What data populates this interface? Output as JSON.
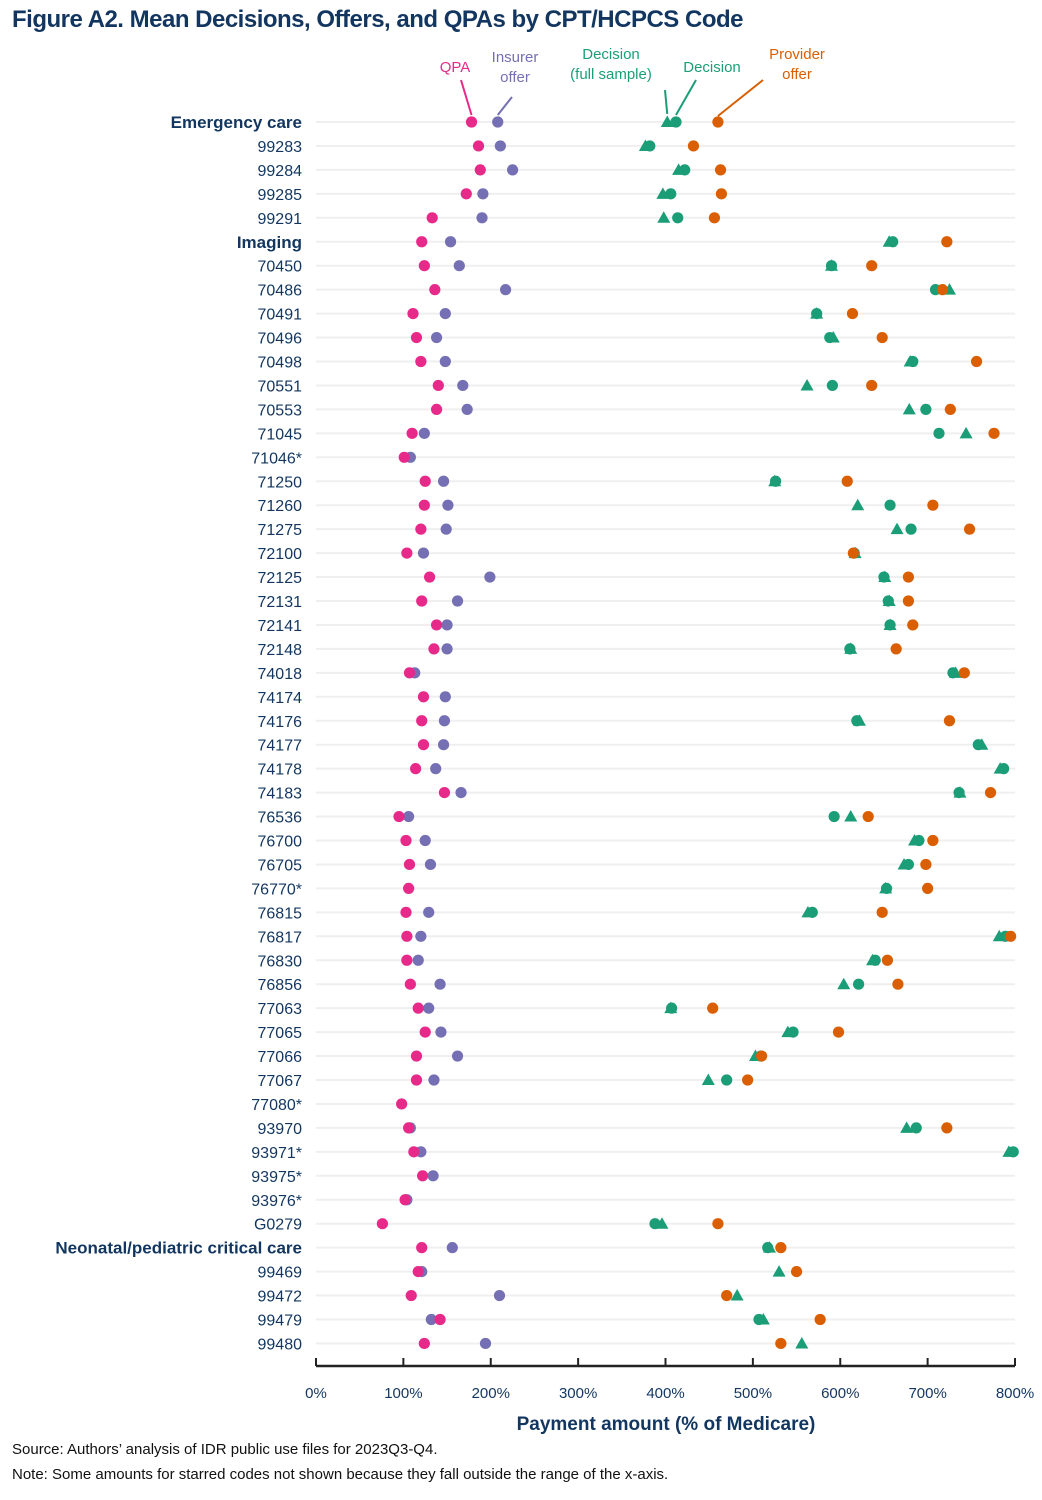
{
  "chart_data": {
    "type": "scatter",
    "title": "Figure A2. Mean Decisions, Offers, and QPAs by CPT/HCPCS Code",
    "xlabel": "Payment amount (% of Medicare)",
    "ylabel": "",
    "xlim": [
      0,
      800
    ],
    "x_ticks": [
      0,
      100,
      200,
      300,
      400,
      500,
      600,
      700,
      800
    ],
    "x_tick_labels": [
      "0%",
      "100%",
      "200%",
      "300%",
      "400%",
      "500%",
      "600%",
      "700%",
      "800%"
    ],
    "grid": "horizontal",
    "legend": [
      {
        "key": "qpa",
        "label_lines": [
          "QPA"
        ],
        "color": "#e7298a",
        "shape": "circle"
      },
      {
        "key": "insurer",
        "label_lines": [
          "Insurer",
          "offer"
        ],
        "color": "#7570b3",
        "shape": "circle"
      },
      {
        "key": "decision_full",
        "label_lines": [
          "Decision",
          "(full sample)"
        ],
        "color": "#1b9e77",
        "shape": "triangle"
      },
      {
        "key": "decision",
        "label_lines": [
          "Decision"
        ],
        "color": "#1b9e77",
        "shape": "circle"
      },
      {
        "key": "provider",
        "label_lines": [
          "Provider",
          "offer"
        ],
        "color": "#d95f02",
        "shape": "circle"
      }
    ],
    "rows": [
      {
        "label": "Emergency care",
        "group": true,
        "qpa": 178,
        "insurer": 208,
        "decision_full": 402,
        "decision": 412,
        "provider": 460
      },
      {
        "label": "99283",
        "group": false,
        "qpa": 186,
        "insurer": 211,
        "decision_full": 377,
        "decision": 382,
        "provider": 432
      },
      {
        "label": "99284",
        "group": false,
        "qpa": 188,
        "insurer": 225,
        "decision_full": 415,
        "decision": 422,
        "provider": 463
      },
      {
        "label": "99285",
        "group": false,
        "qpa": 172,
        "insurer": 191,
        "decision_full": 397,
        "decision": 406,
        "provider": 464
      },
      {
        "label": "99291",
        "group": false,
        "qpa": 133,
        "insurer": 190,
        "decision_full": 398,
        "decision": 414,
        "provider": 456
      },
      {
        "label": "Imaging",
        "group": true,
        "qpa": 121,
        "insurer": 154,
        "decision_full": 656,
        "decision": 660,
        "provider": 722
      },
      {
        "label": "70450",
        "group": false,
        "qpa": 124,
        "insurer": 164,
        "decision_full": 590,
        "decision": 590,
        "provider": 636
      },
      {
        "label": "70486",
        "group": false,
        "qpa": 136,
        "insurer": 217,
        "decision_full": 725,
        "decision": 709,
        "provider": 717
      },
      {
        "label": "70491",
        "group": false,
        "qpa": 111,
        "insurer": 148,
        "decision_full": 573,
        "decision": 573,
        "provider": 614
      },
      {
        "label": "70496",
        "group": false,
        "qpa": 115,
        "insurer": 138,
        "decision_full": 592,
        "decision": 588,
        "provider": 648
      },
      {
        "label": "70498",
        "group": false,
        "qpa": 120,
        "insurer": 148,
        "decision_full": 680,
        "decision": 683,
        "provider": 756
      },
      {
        "label": "70551",
        "group": false,
        "qpa": 140,
        "insurer": 168,
        "decision_full": 562,
        "decision": 591,
        "provider": 636
      },
      {
        "label": "70553",
        "group": false,
        "qpa": 138,
        "insurer": 173,
        "decision_full": 679,
        "decision": 698,
        "provider": 726
      },
      {
        "label": "71045",
        "group": false,
        "qpa": 110,
        "insurer": 124,
        "decision_full": 744,
        "decision": 713,
        "provider": 776
      },
      {
        "label": "71046*",
        "group": false,
        "qpa": 101,
        "insurer": 108,
        "decision_full": null,
        "decision": null,
        "provider": null
      },
      {
        "label": "71250",
        "group": false,
        "qpa": 125,
        "insurer": 146,
        "decision_full": 525,
        "decision": 526,
        "provider": 608
      },
      {
        "label": "71260",
        "group": false,
        "qpa": 124,
        "insurer": 151,
        "decision_full": 620,
        "decision": 657,
        "provider": 706
      },
      {
        "label": "71275",
        "group": false,
        "qpa": 120,
        "insurer": 149,
        "decision_full": 665,
        "decision": 681,
        "provider": 748
      },
      {
        "label": "72100",
        "group": false,
        "qpa": 104,
        "insurer": 123,
        "decision_full": 617,
        "decision": 616,
        "provider": 615
      },
      {
        "label": "72125",
        "group": false,
        "qpa": 130,
        "insurer": 199,
        "decision_full": 651,
        "decision": 650,
        "provider": 678
      },
      {
        "label": "72131",
        "group": false,
        "qpa": 121,
        "insurer": 162,
        "decision_full": 656,
        "decision": 655,
        "provider": 678
      },
      {
        "label": "72141",
        "group": false,
        "qpa": 138,
        "insurer": 150,
        "decision_full": 657,
        "decision": 657,
        "provider": 683
      },
      {
        "label": "72148",
        "group": false,
        "qpa": 135,
        "insurer": 150,
        "decision_full": 612,
        "decision": 611,
        "provider": 664
      },
      {
        "label": "74018",
        "group": false,
        "qpa": 107,
        "insurer": 113,
        "decision_full": 732,
        "decision": 729,
        "provider": 742
      },
      {
        "label": "74174",
        "group": false,
        "qpa": 123,
        "insurer": 148,
        "decision_full": null,
        "decision": null,
        "provider": null
      },
      {
        "label": "74176",
        "group": false,
        "qpa": 121,
        "insurer": 147,
        "decision_full": 622,
        "decision": 619,
        "provider": 725
      },
      {
        "label": "74177",
        "group": false,
        "qpa": 123,
        "insurer": 146,
        "decision_full": 762,
        "decision": 758,
        "provider": null
      },
      {
        "label": "74178",
        "group": false,
        "qpa": 114,
        "insurer": 137,
        "decision_full": 783,
        "decision": 787,
        "provider": null
      },
      {
        "label": "74183",
        "group": false,
        "qpa": 147,
        "insurer": 166,
        "decision_full": 737,
        "decision": 736,
        "provider": 772
      },
      {
        "label": "76536",
        "group": false,
        "qpa": 95,
        "insurer": 106,
        "decision_full": 612,
        "decision": 593,
        "provider": 632
      },
      {
        "label": "76700",
        "group": false,
        "qpa": 103,
        "insurer": 125,
        "decision_full": 685,
        "decision": 690,
        "provider": 706
      },
      {
        "label": "76705",
        "group": false,
        "qpa": 107,
        "insurer": 131,
        "decision_full": 673,
        "decision": 678,
        "provider": 698
      },
      {
        "label": "76770*",
        "group": false,
        "qpa": 106,
        "insurer": null,
        "decision_full": 652,
        "decision": 653,
        "provider": 700
      },
      {
        "label": "76815",
        "group": false,
        "qpa": 103,
        "insurer": 129,
        "decision_full": 563,
        "decision": 568,
        "provider": 648
      },
      {
        "label": "76817",
        "group": false,
        "qpa": 104,
        "insurer": 120,
        "decision_full": 782,
        "decision": 789,
        "provider": 795
      },
      {
        "label": "76830",
        "group": false,
        "qpa": 104,
        "insurer": 117,
        "decision_full": 637,
        "decision": 640,
        "provider": 654
      },
      {
        "label": "76856",
        "group": false,
        "qpa": 108,
        "insurer": 142,
        "decision_full": 604,
        "decision": 621,
        "provider": 666
      },
      {
        "label": "77063",
        "group": false,
        "qpa": 117,
        "insurer": 129,
        "decision_full": 406,
        "decision": 407,
        "provider": 454
      },
      {
        "label": "77065",
        "group": false,
        "qpa": 125,
        "insurer": 143,
        "decision_full": 540,
        "decision": 546,
        "provider": 598
      },
      {
        "label": "77066",
        "group": false,
        "qpa": 115,
        "insurer": 162,
        "decision_full": 503,
        "decision": 509,
        "provider": 510
      },
      {
        "label": "77067",
        "group": false,
        "qpa": 115,
        "insurer": 135,
        "decision_full": 449,
        "decision": 470,
        "provider": 494
      },
      {
        "label": "77080*",
        "group": false,
        "qpa": 98,
        "insurer": null,
        "decision_full": null,
        "decision": null,
        "provider": null
      },
      {
        "label": "93970",
        "group": false,
        "qpa": 106,
        "insurer": 108,
        "decision_full": 676,
        "decision": 687,
        "provider": 722
      },
      {
        "label": "93971*",
        "group": false,
        "qpa": 112,
        "insurer": 120,
        "decision_full": 793,
        "decision": 798,
        "provider": null
      },
      {
        "label": "93975*",
        "group": false,
        "qpa": 122,
        "insurer": 134,
        "decision_full": null,
        "decision": null,
        "provider": null
      },
      {
        "label": "93976*",
        "group": false,
        "qpa": 102,
        "insurer": 104,
        "decision_full": null,
        "decision": null,
        "provider": null
      },
      {
        "label": "G0279",
        "group": false,
        "qpa": 76,
        "insurer": null,
        "decision_full": 396,
        "decision": 388,
        "provider": 460
      },
      {
        "label": "Neonatal/pediatric critical care",
        "group": true,
        "qpa": 121,
        "insurer": 156,
        "decision_full": 519,
        "decision": 517,
        "provider": 532
      },
      {
        "label": "99469",
        "group": false,
        "qpa": 117,
        "insurer": 121,
        "decision_full": 530,
        "decision": null,
        "provider": 550
      },
      {
        "label": "99472",
        "group": false,
        "qpa": 109,
        "insurer": 210,
        "decision_full": 482,
        "decision": null,
        "provider": 470
      },
      {
        "label": "99479",
        "group": false,
        "qpa": 142,
        "insurer": 132,
        "decision_full": 512,
        "decision": 507,
        "provider": 577
      },
      {
        "label": "99480",
        "group": false,
        "qpa": 124,
        "insurer": 194,
        "decision_full": 556,
        "decision": null,
        "provider": 532
      }
    ]
  },
  "footnotes": {
    "source": "Source: Authors’ analysis of IDR public use files for 2023Q3-Q4.",
    "note": "Note: Some amounts for starred codes not shown because they fall outside the range of the x-axis."
  }
}
